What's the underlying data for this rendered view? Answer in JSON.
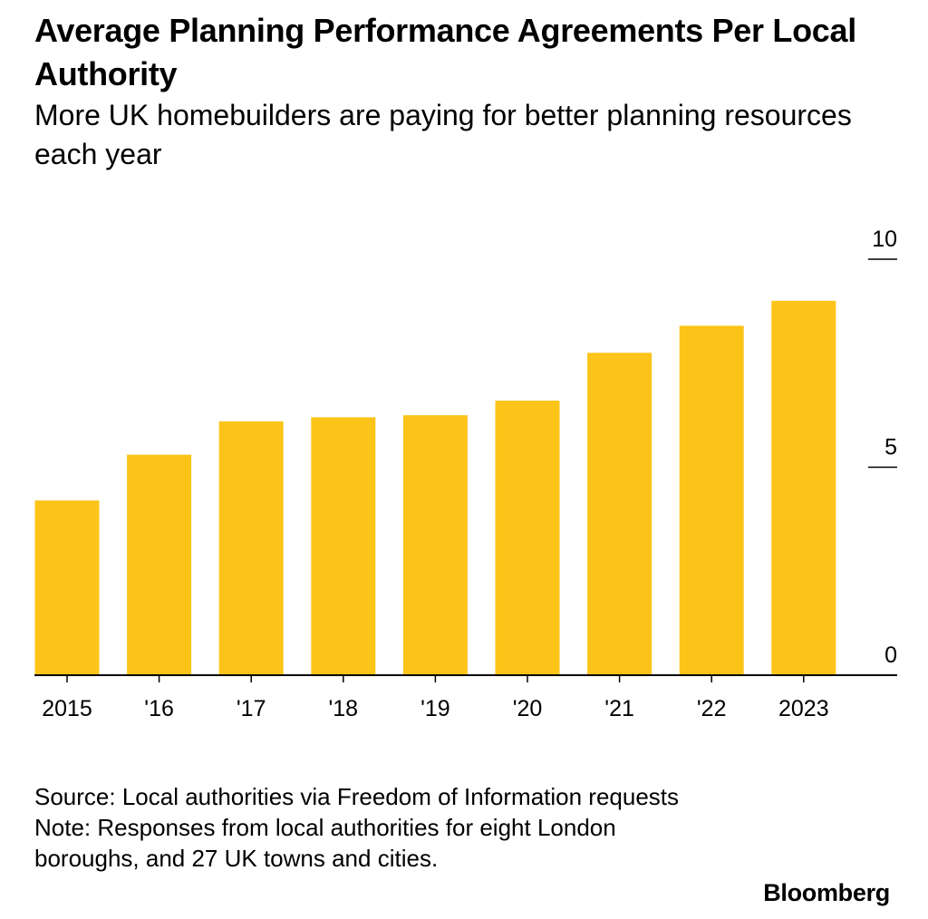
{
  "header": {
    "title": "Average Planning Performance Agreements Per Local Authority",
    "subtitle": "More UK homebuilders are paying for better planning resources each year"
  },
  "footer": {
    "source": "Source: Local authorities via Freedom of Information requests",
    "note": "Note: Responses from local authorities for eight London boroughs, and 27 UK towns and cities.",
    "brand": "Bloomberg"
  },
  "chart_data": {
    "type": "bar",
    "title": "Average Planning Performance Agreements Per Local Authority",
    "subtitle": "More UK homebuilders are paying for better planning resources each year",
    "xlabel": "",
    "ylabel": "",
    "categories": [
      "2015",
      "'16",
      "'17",
      "'18",
      "'19",
      "'20",
      "'21",
      "'22",
      "2023"
    ],
    "values": [
      4.2,
      5.3,
      6.1,
      6.2,
      6.25,
      6.6,
      7.75,
      8.4,
      9.0
    ],
    "ylim": [
      0,
      10
    ],
    "yticks": [
      0,
      5,
      10
    ],
    "y_axis_side": "right",
    "bar_color": "#FCC419",
    "grid": false
  }
}
